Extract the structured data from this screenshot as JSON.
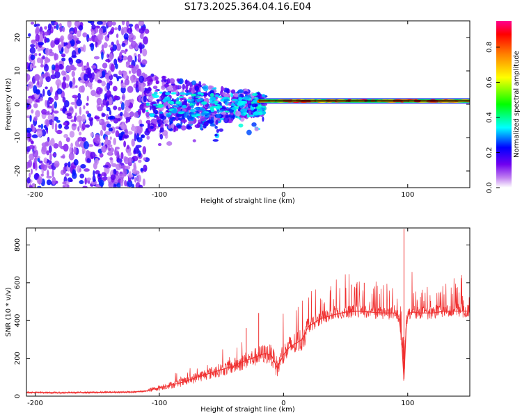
{
  "title": "S173.2025.364.04.16.E04",
  "chart_data": [
    {
      "type": "heatmap",
      "title": "S173.2025.364.04.16.E04",
      "xlabel": "Height of straight line (km)",
      "ylabel": "Frequency (Hz)",
      "xlim": [
        -207,
        150
      ],
      "ylim": [
        -25,
        25
      ],
      "xticks": [
        -200,
        -100,
        0,
        100
      ],
      "yticks": [
        -20,
        -10,
        0,
        10,
        20
      ],
      "colorbar": {
        "label": "Normalized spectral amplitude",
        "range": [
          0.0,
          0.95
        ],
        "ticks": [
          "0.0",
          "0.2",
          "0.4",
          "0.6",
          "0.8"
        ],
        "tick_values": [
          0.0,
          0.2,
          0.4,
          0.6,
          0.8
        ],
        "stops": [
          "#ffffff",
          "#a020f0",
          "#0000ff",
          "#00ffff",
          "#00ff00",
          "#ffff00",
          "#ff8000",
          "#ff0000",
          "#ff00a0"
        ]
      },
      "features": [
        {
          "name": "noise-region",
          "x_range": [
            -207,
            -110
          ],
          "freq_range": [
            -25,
            25
          ],
          "level": 0.2
        },
        {
          "name": "broadening-region",
          "x_range": [
            -110,
            -15
          ],
          "freq_range": [
            -12,
            8
          ],
          "level": 0.3
        },
        {
          "name": "carrier-line",
          "x_range": [
            -20,
            150
          ],
          "freq_hz": 1,
          "level": 0.9
        }
      ]
    },
    {
      "type": "line",
      "xlabel": "Height of straight line (km)",
      "ylabel": "SNR (10 * v/v)",
      "xlim": [
        -207,
        150
      ],
      "ylim": [
        0,
        890
      ],
      "xticks": [
        -200,
        -100,
        0,
        100
      ],
      "yticks": [
        0,
        200,
        400,
        600,
        800
      ],
      "color": "#f03030",
      "series": [
        {
          "name": "SNR",
          "x": [
            -207,
            -180,
            -150,
            -120,
            -110,
            -100,
            -90,
            -80,
            -70,
            -60,
            -50,
            -40,
            -30,
            -25,
            -20,
            -15,
            -10,
            -5,
            0,
            5,
            10,
            15,
            20,
            25,
            30,
            40,
            50,
            60,
            70,
            80,
            90,
            93,
            95,
            97,
            99,
            101,
            105,
            110,
            120,
            130,
            140,
            150
          ],
          "y": [
            20,
            18,
            20,
            22,
            28,
            45,
            60,
            75,
            100,
            120,
            140,
            160,
            190,
            200,
            215,
            225,
            220,
            150,
            220,
            260,
            280,
            300,
            370,
            390,
            410,
            430,
            445,
            450,
            445,
            440,
            440,
            420,
            300,
            90,
            400,
            440,
            445,
            440,
            440,
            450,
            450,
            450
          ]
        }
      ],
      "spikes": [
        {
          "x": -30,
          "y": 360
        },
        {
          "x": -20,
          "y": 440
        },
        {
          "x": 55,
          "y": 590
        },
        {
          "x": 65,
          "y": 600
        },
        {
          "x": 97,
          "y": 885
        }
      ]
    }
  ]
}
